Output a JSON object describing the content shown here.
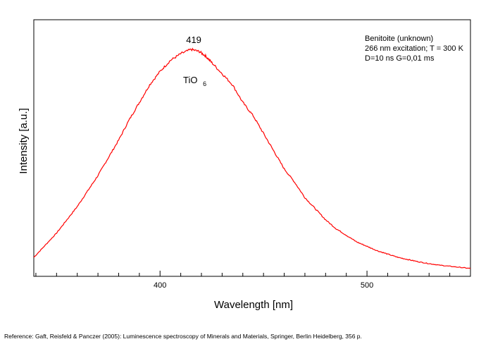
{
  "chart_data": {
    "type": "line",
    "xlabel": "Wavelength [nm]",
    "ylabel": "Intensity [a.u.]",
    "xlim": [
      339,
      550
    ],
    "ylim": [
      0,
      1.0
    ],
    "x_ticks": [
      400,
      500
    ],
    "x_minor_step": 10,
    "y_ticks": [],
    "grid": false,
    "line_color": "#ff0000",
    "info_lines": [
      "Benitoite (unknown)",
      "266 nm excitation; T = 300 K",
      "D=10 ns G=0,01 ms"
    ],
    "peak_annotation": {
      "text": "419",
      "x": 419
    },
    "species_label": {
      "main": "TiO",
      "sub": "6"
    },
    "series": [
      {
        "x": [
          339,
          345,
          350,
          355,
          360,
          365,
          370,
          375,
          380,
          385,
          390,
          395,
          400,
          405,
          410,
          415,
          419,
          422,
          425,
          430,
          435,
          440,
          445,
          450,
          455,
          460,
          465,
          470,
          475,
          480,
          485,
          490,
          495,
          500,
          505,
          510,
          515,
          520,
          525,
          530,
          535,
          540,
          545,
          550
        ],
        "y": [
          0.06,
          0.12,
          0.17,
          0.23,
          0.29,
          0.36,
          0.43,
          0.51,
          0.59,
          0.68,
          0.76,
          0.84,
          0.9,
          0.95,
          0.98,
          1.0,
          0.99,
          0.97,
          0.94,
          0.89,
          0.84,
          0.76,
          0.7,
          0.62,
          0.54,
          0.46,
          0.4,
          0.33,
          0.28,
          0.23,
          0.19,
          0.16,
          0.13,
          0.11,
          0.09,
          0.075,
          0.06,
          0.05,
          0.04,
          0.032,
          0.025,
          0.02,
          0.015,
          0.01
        ]
      }
    ]
  },
  "reference": "Reference: Gaft, Reisfeld & Panczer (2005): Luminescence spectroscopy of Minerals and Materials, Springer, Berlin Heidelberg, 356 p."
}
